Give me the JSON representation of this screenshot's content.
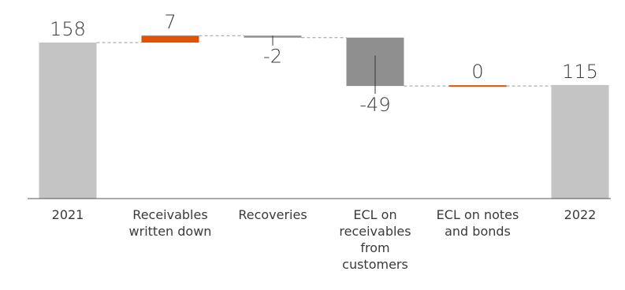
{
  "chart_data": {
    "type": "bar",
    "title": "",
    "xlabel": "",
    "ylabel": "",
    "categories": [
      [
        "2021"
      ],
      [
        "Receivables",
        "written down"
      ],
      [
        "Recoveries"
      ],
      [
        "ECL on",
        "receivables",
        "from",
        "customers"
      ],
      [
        "ECL on notes",
        "and bonds"
      ],
      [
        "2022"
      ]
    ],
    "values": [
      158,
      7,
      -2,
      -49,
      0,
      115
    ],
    "value_labels": [
      "158",
      "7",
      "-2",
      "-49",
      "0",
      "115"
    ],
    "kinds": [
      "total",
      "delta",
      "delta",
      "delta",
      "delta",
      "total"
    ],
    "colors": {
      "total": "#c4c4c4",
      "increase": "#e05206",
      "decrease": "#8f8f8f",
      "zero": "#e05206",
      "connector": "#9a9a9a",
      "axis": "#555555",
      "text": "#3a3a3a"
    },
    "ylim": [
      0,
      180
    ],
    "grid": false,
    "legend": "none"
  }
}
